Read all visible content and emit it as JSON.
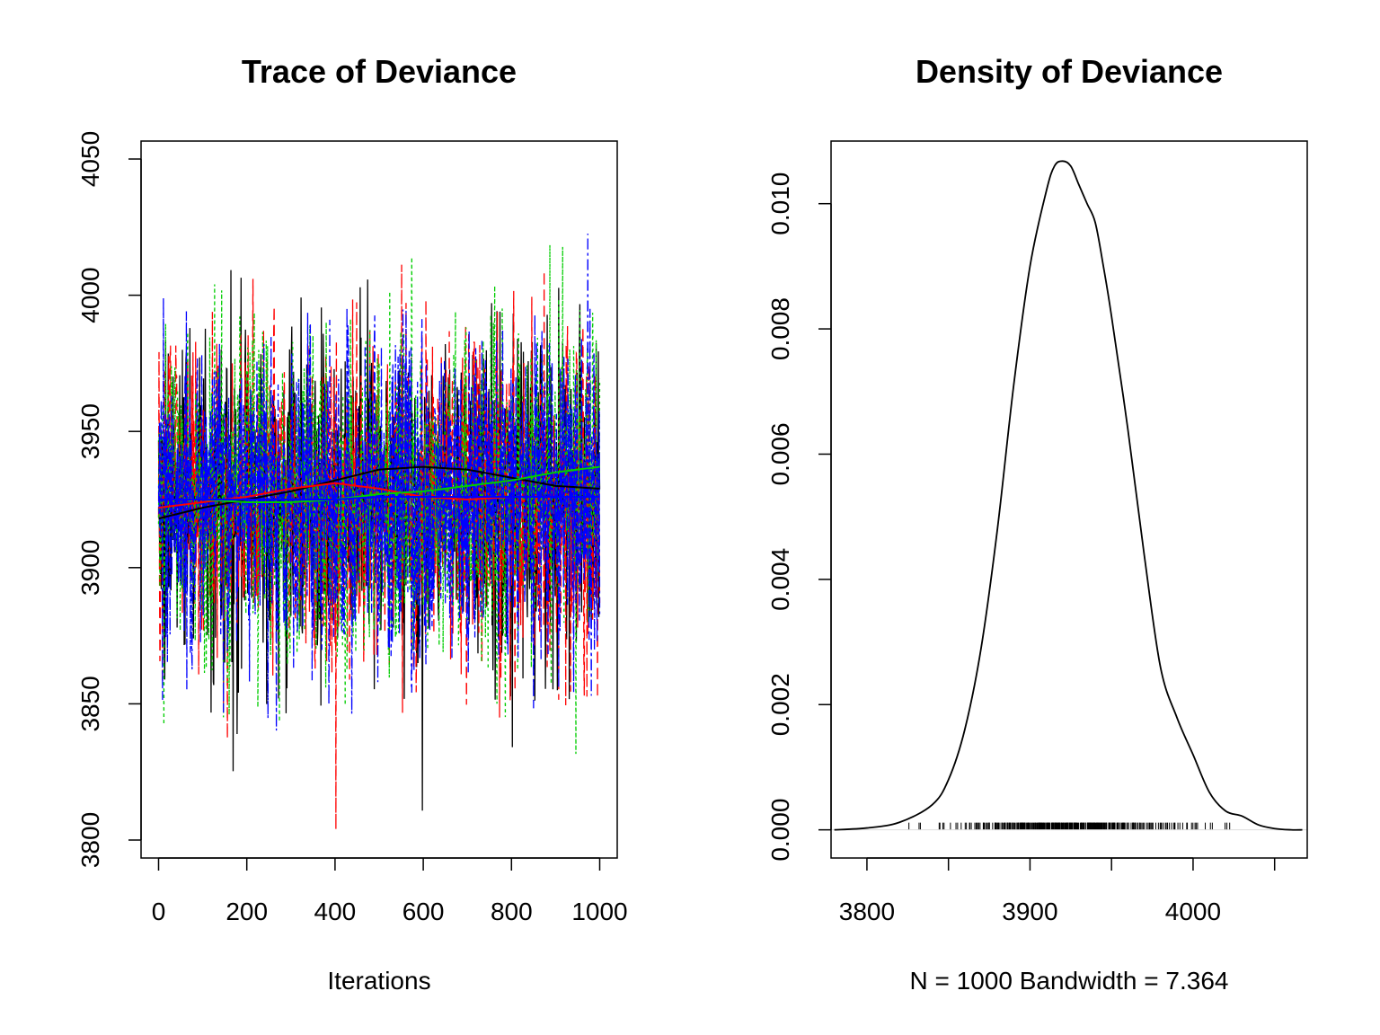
{
  "chart_data": [
    {
      "type": "line",
      "title": "Trace of Deviance",
      "xlabel": "Iterations",
      "ylabel": "",
      "xlim": [
        0,
        1000
      ],
      "ylim": [
        3800,
        4050
      ],
      "x_ticks": [
        0,
        200,
        400,
        600,
        800,
        1000
      ],
      "y_ticks": [
        3800,
        3850,
        3900,
        3950,
        4000,
        4050
      ],
      "grid": false,
      "legend": "none",
      "series": [
        {
          "color": "#000000",
          "line_style": "solid",
          "smooth_x": [
            0,
            100,
            200,
            300,
            400,
            500,
            600,
            700,
            800,
            900,
            1000
          ],
          "smooth_y": [
            3918,
            3922,
            3925,
            3928,
            3932,
            3936,
            3937,
            3936,
            3933,
            3930,
            3929
          ]
        },
        {
          "color": "#ff0000",
          "line_style": "dashed",
          "smooth_x": [
            0,
            100,
            200,
            300,
            400,
            500,
            600,
            700,
            800,
            900,
            1000
          ],
          "smooth_y": [
            3922,
            3924,
            3926,
            3929,
            3931,
            3929,
            3926,
            3925,
            3926,
            3926,
            3926
          ]
        },
        {
          "color": "#00cd00",
          "line_style": "dotted",
          "smooth_x": [
            0,
            100,
            200,
            300,
            400,
            500,
            600,
            700,
            800,
            900,
            1000
          ],
          "smooth_y": [
            3925,
            3925,
            3924,
            3924,
            3925,
            3927,
            3928,
            3930,
            3932,
            3935,
            3937
          ]
        },
        {
          "color": "#0000ff",
          "line_style": "dotdash",
          "smooth_x": [
            0,
            100,
            200,
            300,
            400,
            500,
            600,
            700,
            800,
            900,
            1000
          ],
          "smooth_y": [
            3925,
            3925,
            3925,
            3925,
            3925,
            3926,
            3926,
            3926,
            3926,
            3926,
            3926
          ]
        }
      ]
    },
    {
      "type": "line",
      "title": "Density of Deviance",
      "xlabel": "N = 1000   Bandwidth = 7.364",
      "ylabel": "",
      "xlim": [
        3778,
        4070
      ],
      "ylim": [
        -0.00045,
        0.011
      ],
      "x_ticks": [
        3800,
        3900,
        4000
      ],
      "y_ticks": [
        0.0,
        0.002,
        0.004,
        0.006,
        0.008,
        0.01
      ],
      "y_tick_labels": [
        "0.000",
        "0.002",
        "0.004",
        "0.006",
        "0.008",
        "0.010"
      ],
      "grid": false,
      "legend": "none",
      "x": [
        3780,
        3800,
        3820,
        3840,
        3850,
        3860,
        3870,
        3880,
        3890,
        3900,
        3910,
        3915,
        3920,
        3925,
        3930,
        3935,
        3940,
        3945,
        3950,
        3960,
        3970,
        3980,
        3990,
        4000,
        4010,
        4020,
        4030,
        4040,
        4050,
        4060,
        4067
      ],
      "y": [
        0.0,
        3e-05,
        0.00012,
        0.0004,
        0.0008,
        0.0016,
        0.0029,
        0.0048,
        0.0071,
        0.009,
        0.0102,
        0.0106,
        0.01068,
        0.0106,
        0.0103,
        0.01,
        0.0097,
        0.009,
        0.0082,
        0.0064,
        0.0044,
        0.0026,
        0.0018,
        0.0012,
        0.0006,
        0.0003,
        0.00022,
        8e-05,
        2e-05,
        0.0,
        0.0
      ]
    }
  ]
}
